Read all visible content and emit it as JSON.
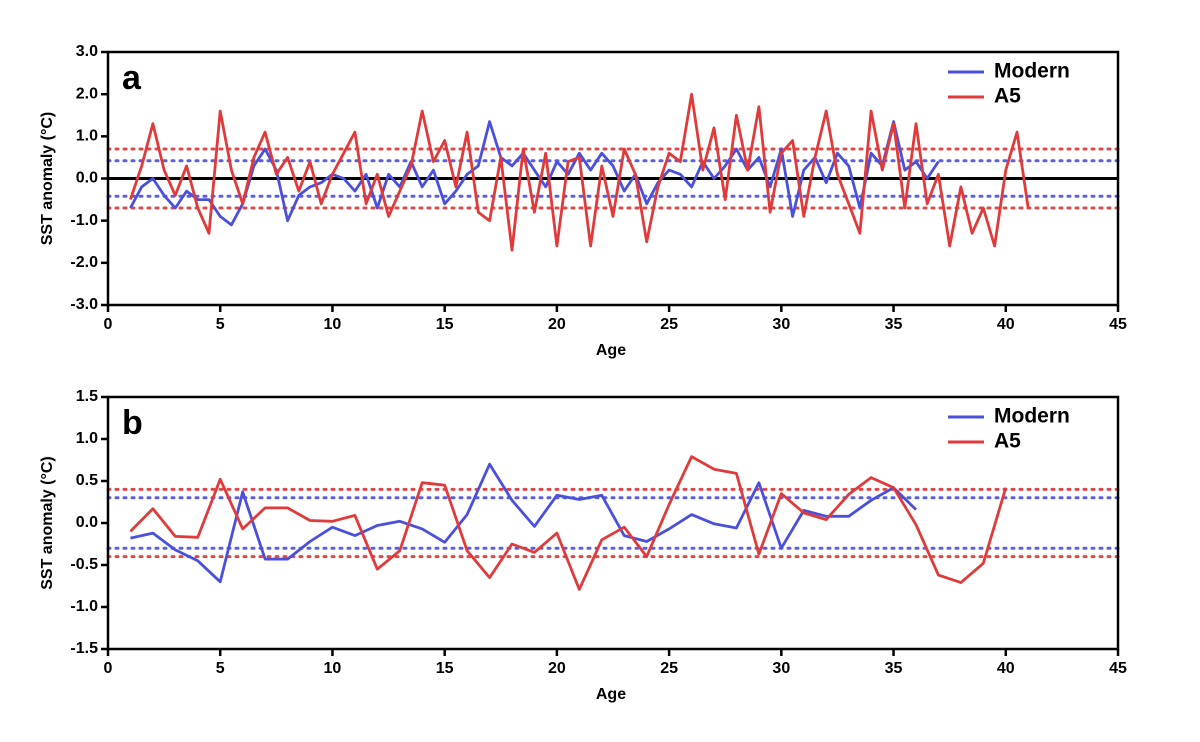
{
  "chart_data": [
    {
      "type": "line",
      "panel_label": "a",
      "xlabel": "Age",
      "ylabel": "SST anomaly (°C)",
      "xlim": [
        0,
        45
      ],
      "xticks": [
        0,
        5,
        10,
        15,
        20,
        25,
        30,
        35,
        40,
        45
      ],
      "ylim": [
        -3,
        3
      ],
      "yticks": [
        {
          "value": -3,
          "label": "-3.0"
        },
        {
          "value": -2,
          "label": "-2.0"
        },
        {
          "value": -1,
          "label": "-1.0"
        },
        {
          "value": 0,
          "label": "0.0"
        },
        {
          "value": 1,
          "label": "1.0"
        },
        {
          "value": 2,
          "label": "2.0"
        },
        {
          "value": 3,
          "label": "3.0"
        }
      ],
      "legend": "upper right",
      "reference_lines": [
        {
          "value": 0,
          "color": "#000000",
          "style": "solid"
        },
        {
          "value": 0.7,
          "color": "#e04848",
          "style": "dotted"
        },
        {
          "value": -0.7,
          "color": "#e04848",
          "style": "dotted"
        },
        {
          "value": 0.42,
          "color": "#5a5ee0",
          "style": "dotted"
        },
        {
          "value": -0.42,
          "color": "#5a5ee0",
          "style": "dotted"
        }
      ],
      "series": [
        {
          "name": "Modern",
          "color": "#4b50dc",
          "x": [
            1,
            1.5,
            2,
            2.5,
            3,
            3.5,
            4,
            4.5,
            5,
            5.5,
            6,
            6.5,
            7,
            7.5,
            8,
            8.5,
            9,
            9.5,
            10,
            10.5,
            11,
            11.5,
            12,
            12.5,
            13,
            13.5,
            14,
            14.5,
            15,
            15.5,
            16,
            16.5,
            17,
            17.5,
            18,
            18.5,
            19,
            19.5,
            20,
            20.5,
            21,
            21.5,
            22,
            22.5,
            23,
            23.5,
            24,
            24.5,
            25,
            25.5,
            26,
            26.5,
            27,
            27.5,
            28,
            28.5,
            29,
            29.5,
            30,
            30.5,
            31,
            31.5,
            32,
            32.5,
            33,
            33.5,
            34,
            34.5,
            35,
            35.5,
            36,
            36.5,
            37
          ],
          "values": [
            -0.7,
            -0.2,
            0.0,
            -0.4,
            -0.7,
            -0.3,
            -0.5,
            -0.5,
            -0.9,
            -1.1,
            -0.6,
            0.3,
            0.7,
            0.2,
            -1.0,
            -0.4,
            -0.2,
            -0.1,
            0.1,
            0.0,
            -0.3,
            0.1,
            -0.7,
            0.1,
            -0.2,
            0.4,
            -0.2,
            0.2,
            -0.6,
            -0.3,
            0.1,
            0.3,
            1.35,
            0.5,
            0.3,
            0.6,
            0.2,
            -0.2,
            0.4,
            0.1,
            0.6,
            0.2,
            0.6,
            0.3,
            -0.3,
            0.1,
            -0.6,
            -0.1,
            0.2,
            0.1,
            -0.2,
            0.4,
            0.0,
            0.3,
            0.7,
            0.2,
            0.5,
            -0.2,
            0.7,
            -0.9,
            0.2,
            0.5,
            -0.1,
            0.6,
            0.3,
            -0.7,
            0.6,
            0.3,
            1.35,
            0.2,
            0.4,
            0.0,
            0.4
          ]
        },
        {
          "name": "A5",
          "color": "#e03a3a",
          "x": [
            1,
            1.5,
            2,
            2.5,
            3,
            3.5,
            4,
            4.5,
            5,
            5.5,
            6,
            6.5,
            7,
            7.5,
            8,
            8.5,
            9,
            9.5,
            10,
            10.5,
            11,
            11.5,
            12,
            12.5,
            13,
            13.5,
            14,
            14.5,
            15,
            15.5,
            16,
            16.5,
            17,
            17.5,
            18,
            18.5,
            19,
            19.5,
            20,
            20.5,
            21,
            21.5,
            22,
            22.5,
            23,
            23.5,
            24,
            24.5,
            25,
            25.5,
            26,
            26.5,
            27,
            27.5,
            28,
            28.5,
            29,
            29.5,
            30,
            30.5,
            31,
            31.5,
            32,
            32.5,
            33,
            33.5,
            34,
            34.5,
            35,
            35.5,
            36,
            36.5,
            37,
            37.5,
            38,
            38.5,
            39,
            39.5,
            40,
            40.5,
            41
          ],
          "values": [
            -0.5,
            0.3,
            1.3,
            0.2,
            -0.4,
            0.3,
            -0.7,
            -1.3,
            1.6,
            0.2,
            -0.6,
            0.5,
            1.1,
            0.1,
            0.5,
            -0.3,
            0.4,
            -0.6,
            0.1,
            0.6,
            1.1,
            -0.6,
            0.1,
            -0.9,
            -0.3,
            0.3,
            1.6,
            0.4,
            0.9,
            -0.2,
            1.1,
            -0.8,
            -1.0,
            0.5,
            -1.7,
            0.7,
            -0.8,
            0.6,
            -1.6,
            0.4,
            0.5,
            -1.6,
            0.3,
            -0.9,
            0.7,
            0.1,
            -1.5,
            -0.2,
            0.6,
            0.4,
            2.0,
            0.2,
            1.2,
            -0.5,
            1.5,
            0.2,
            1.7,
            -0.8,
            0.6,
            0.9,
            -0.9,
            0.5,
            1.6,
            0.1,
            -0.6,
            -1.3,
            1.6,
            0.2,
            1.3,
            -0.7,
            1.3,
            -0.6,
            0.1,
            -1.6,
            -0.2,
            -1.3,
            -0.7,
            -1.6,
            0.2,
            1.1,
            -0.7
          ]
        }
      ]
    },
    {
      "type": "line",
      "panel_label": "b",
      "xlabel": "Age",
      "ylabel": "SST anomaly (°C)",
      "xlim": [
        0,
        45
      ],
      "xticks": [
        0,
        5,
        10,
        15,
        20,
        25,
        30,
        35,
        40,
        45
      ],
      "ylim": [
        -1.5,
        1.5
      ],
      "yticks": [
        -1.5,
        {
          "value": -1,
          "label": "-1.0"
        },
        -0.5,
        {
          "value": 0,
          "label": "0.0"
        },
        0.5,
        {
          "value": 1,
          "label": "1.0"
        },
        1.5
      ],
      "legend": "upper right",
      "reference_lines": [
        {
          "value": 0.4,
          "color": "#e04848",
          "style": "dotted"
        },
        {
          "value": -0.4,
          "color": "#e04848",
          "style": "dotted"
        },
        {
          "value": 0.3,
          "color": "#5a5ee0",
          "style": "dotted"
        },
        {
          "value": -0.3,
          "color": "#5a5ee0",
          "style": "dotted"
        }
      ],
      "series": [
        {
          "name": "Modern",
          "color": "#4b50dc",
          "x": [
            1,
            2,
            3,
            4,
            5,
            6,
            7,
            8,
            9,
            10,
            11,
            12,
            13,
            14,
            15,
            16,
            17,
            18,
            19,
            20,
            21,
            22,
            23,
            24,
            25,
            26,
            27,
            28,
            29,
            30,
            31,
            32,
            33,
            34,
            35,
            36
          ],
          "values": [
            -0.18,
            -0.12,
            -0.32,
            -0.45,
            -0.7,
            0.37,
            -0.43,
            -0.43,
            -0.22,
            -0.05,
            -0.15,
            -0.03,
            0.02,
            -0.07,
            -0.23,
            0.1,
            0.7,
            0.27,
            -0.04,
            0.33,
            0.28,
            0.33,
            -0.15,
            -0.22,
            -0.07,
            0.1,
            -0.01,
            -0.06,
            0.48,
            -0.3,
            0.15,
            0.08,
            0.08,
            0.27,
            0.42,
            0.16
          ]
        },
        {
          "name": "A5",
          "color": "#e03a3a",
          "x": [
            1,
            2,
            3,
            4,
            5,
            6,
            7,
            8,
            9,
            10,
            11,
            12,
            13,
            14,
            15,
            16,
            17,
            18,
            19,
            20,
            21,
            22,
            23,
            24,
            25,
            26,
            27,
            28,
            29,
            30,
            31,
            32,
            33,
            34,
            35,
            36,
            37,
            38,
            39,
            40
          ],
          "values": [
            -0.1,
            0.17,
            -0.16,
            -0.17,
            0.52,
            -0.07,
            0.18,
            0.18,
            0.03,
            0.02,
            0.09,
            -0.55,
            -0.33,
            0.48,
            0.45,
            -0.33,
            -0.65,
            -0.25,
            -0.35,
            -0.12,
            -0.79,
            -0.2,
            -0.05,
            -0.4,
            0.22,
            0.79,
            0.64,
            0.59,
            -0.37,
            0.35,
            0.12,
            0.04,
            0.34,
            0.54,
            0.42,
            -0.02,
            -0.62,
            -0.71,
            -0.48,
            0.42
          ]
        }
      ]
    }
  ]
}
